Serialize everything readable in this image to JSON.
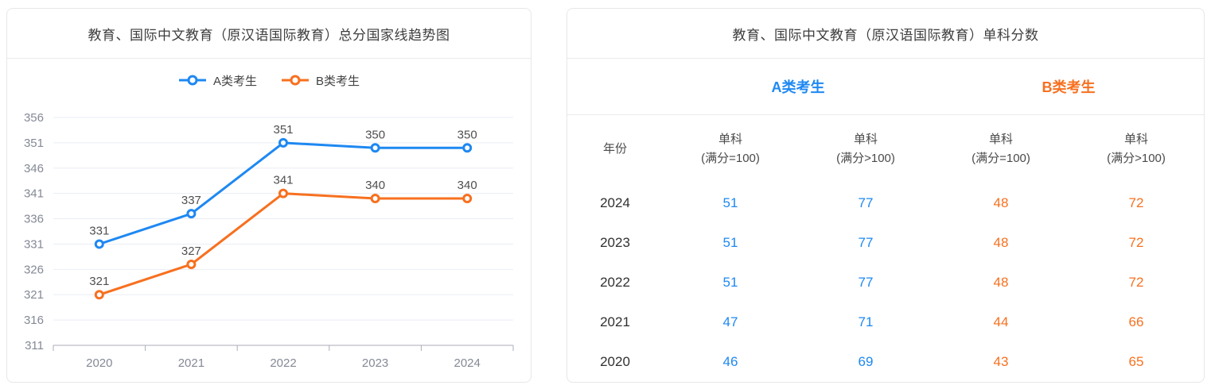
{
  "colors": {
    "blue": "#1e88f2",
    "orange": "#f7701f",
    "grid": "#e9edf4",
    "axis": "#a9aeb8",
    "axis_label": "#848996",
    "data_label": "#4f4f4f",
    "panel_border": "#e7e7e7"
  },
  "chart_data": [
    {
      "type": "line",
      "title": "教育、国际中文教育（原汉语国际教育）总分国家线趋势图",
      "categories": [
        "2020",
        "2021",
        "2022",
        "2023",
        "2024"
      ],
      "series": [
        {
          "name": "A类考生",
          "color": "#1e88f2",
          "values": [
            331,
            337,
            351,
            350,
            350
          ]
        },
        {
          "name": "B类考生",
          "color": "#f7701f",
          "values": [
            321,
            327,
            341,
            340,
            340
          ]
        }
      ],
      "xlabel": "",
      "ylabel": "",
      "ylim": [
        311,
        356
      ],
      "ytick_step": 5,
      "grid": true,
      "legend_position": "top",
      "data_labels": true
    },
    {
      "type": "table",
      "title": "教育、国际中文教育（原汉语国际教育）单科分数",
      "year_column_header": "年份",
      "group_headers": [
        {
          "label": "A类考生",
          "color": "#1e88f2"
        },
        {
          "label": "B类考生",
          "color": "#f7701f"
        }
      ],
      "sub_headers": [
        {
          "line1": "单科",
          "line2": "(满分=100)",
          "color": "#1e88f2"
        },
        {
          "line1": "单科",
          "line2": "(满分>100)",
          "color": "#1e88f2"
        },
        {
          "line1": "单科",
          "line2": "(满分=100)",
          "color": "#f7701f"
        },
        {
          "line1": "单科",
          "line2": "(满分>100)",
          "color": "#f7701f"
        }
      ],
      "rows": [
        {
          "year": "2024",
          "values": [
            "51",
            "77",
            "48",
            "72"
          ]
        },
        {
          "year": "2023",
          "values": [
            "51",
            "77",
            "48",
            "72"
          ]
        },
        {
          "year": "2022",
          "values": [
            "51",
            "77",
            "48",
            "72"
          ]
        },
        {
          "year": "2021",
          "values": [
            "47",
            "71",
            "44",
            "66"
          ]
        },
        {
          "year": "2020",
          "values": [
            "46",
            "69",
            "43",
            "65"
          ]
        }
      ]
    }
  ]
}
